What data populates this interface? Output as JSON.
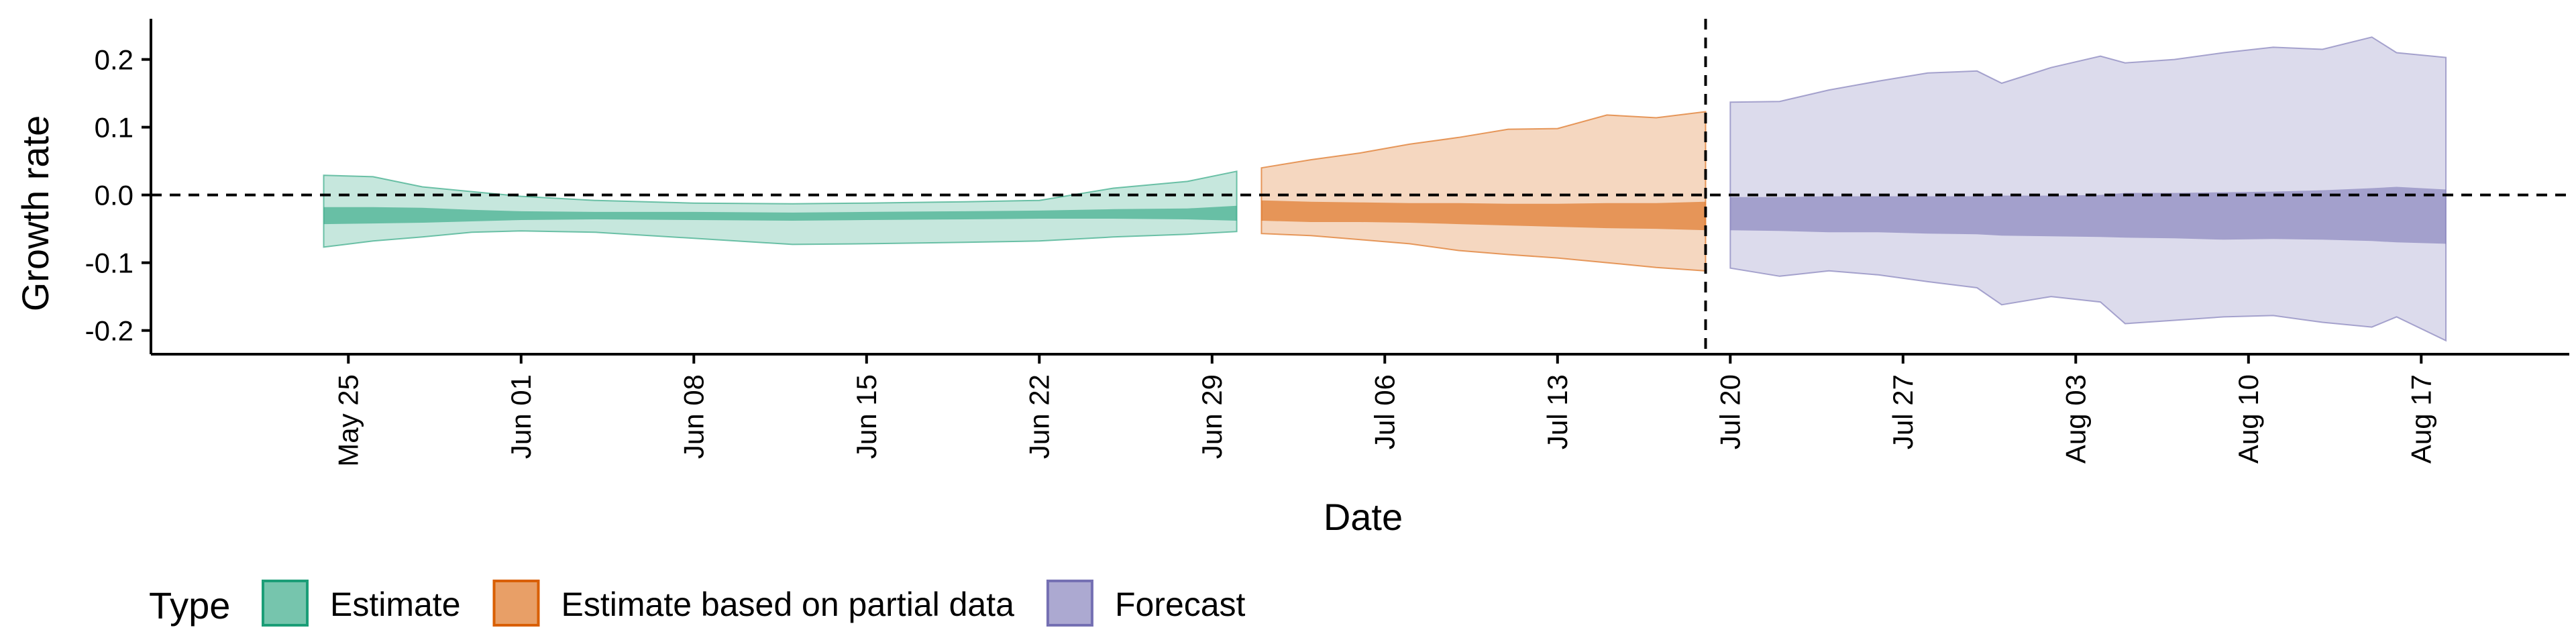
{
  "chart_data": {
    "type": "area",
    "xlabel": "Date",
    "ylabel": "Growth rate",
    "ylim": [
      -0.235,
      0.26
    ],
    "xlim": [
      "2020-05-17",
      "2020-08-23"
    ],
    "y_ticks": [
      {
        "value": 0.2,
        "label": "0.2"
      },
      {
        "value": 0.1,
        "label": "0.1"
      },
      {
        "value": 0.0,
        "label": "0.0"
      },
      {
        "value": -0.1,
        "label": "-0.1"
      },
      {
        "value": -0.2,
        "label": "-0.2"
      }
    ],
    "x_ticks": [
      {
        "date": "2020-05-25",
        "label": "May 25"
      },
      {
        "date": "2020-06-01",
        "label": "Jun 01"
      },
      {
        "date": "2020-06-08",
        "label": "Jun 08"
      },
      {
        "date": "2020-06-15",
        "label": "Jun 15"
      },
      {
        "date": "2020-06-22",
        "label": "Jun 22"
      },
      {
        "date": "2020-06-29",
        "label": "Jun 29"
      },
      {
        "date": "2020-07-06",
        "label": "Jul 06"
      },
      {
        "date": "2020-07-13",
        "label": "Jul 13"
      },
      {
        "date": "2020-07-20",
        "label": "Jul 20"
      },
      {
        "date": "2020-07-27",
        "label": "Jul 27"
      },
      {
        "date": "2020-08-03",
        "label": "Aug 03"
      },
      {
        "date": "2020-08-10",
        "label": "Aug 10"
      },
      {
        "date": "2020-08-17",
        "label": "Aug 17"
      }
    ],
    "reference_lines": {
      "horizontal_y": 0.0,
      "vertical_date": "2020-07-19"
    },
    "legend": {
      "title": "Type",
      "position": "bottom-left",
      "items": [
        {
          "label": "Estimate",
          "color": "#1b9e77"
        },
        {
          "label": "Estimate based on partial data",
          "color": "#d95f02"
        },
        {
          "label": "Forecast",
          "color": "#7570b3"
        }
      ]
    },
    "series": [
      {
        "name": "Estimate",
        "color": "#1b9e77",
        "points": [
          {
            "date": "2020-05-24",
            "outer_lower": -0.077,
            "outer_upper": 0.029,
            "inner_lower": -0.043,
            "inner_upper": -0.018
          },
          {
            "date": "2020-05-26",
            "outer_lower": -0.068,
            "outer_upper": 0.027,
            "inner_lower": -0.042,
            "inner_upper": -0.018
          },
          {
            "date": "2020-05-28",
            "outer_lower": -0.062,
            "outer_upper": 0.012,
            "inner_lower": -0.041,
            "inner_upper": -0.019
          },
          {
            "date": "2020-05-30",
            "outer_lower": -0.055,
            "outer_upper": 0.005,
            "inner_lower": -0.039,
            "inner_upper": -0.022
          },
          {
            "date": "2020-06-01",
            "outer_lower": -0.053,
            "outer_upper": -0.002,
            "inner_lower": -0.037,
            "inner_upper": -0.024
          },
          {
            "date": "2020-06-04",
            "outer_lower": -0.055,
            "outer_upper": -0.008,
            "inner_lower": -0.036,
            "inner_upper": -0.025
          },
          {
            "date": "2020-06-08",
            "outer_lower": -0.064,
            "outer_upper": -0.012,
            "inner_lower": -0.037,
            "inner_upper": -0.025
          },
          {
            "date": "2020-06-12",
            "outer_lower": -0.073,
            "outer_upper": -0.013,
            "inner_lower": -0.038,
            "inner_upper": -0.026
          },
          {
            "date": "2020-06-15",
            "outer_lower": -0.072,
            "outer_upper": -0.012,
            "inner_lower": -0.037,
            "inner_upper": -0.025
          },
          {
            "date": "2020-06-19",
            "outer_lower": -0.07,
            "outer_upper": -0.01,
            "inner_lower": -0.036,
            "inner_upper": -0.024
          },
          {
            "date": "2020-06-22",
            "outer_lower": -0.068,
            "outer_upper": -0.008,
            "inner_lower": -0.035,
            "inner_upper": -0.023
          },
          {
            "date": "2020-06-25",
            "outer_lower": -0.062,
            "outer_upper": 0.01,
            "inner_lower": -0.035,
            "inner_upper": -0.021
          },
          {
            "date": "2020-06-28",
            "outer_lower": -0.058,
            "outer_upper": 0.02,
            "inner_lower": -0.036,
            "inner_upper": -0.02
          },
          {
            "date": "2020-06-30",
            "outer_lower": -0.054,
            "outer_upper": 0.035,
            "inner_lower": -0.038,
            "inner_upper": -0.016
          }
        ]
      },
      {
        "name": "Estimate based on partial data",
        "color": "#d95f02",
        "points": [
          {
            "date": "2020-07-01",
            "outer_lower": -0.057,
            "outer_upper": 0.04,
            "inner_lower": -0.038,
            "inner_upper": -0.008
          },
          {
            "date": "2020-07-03",
            "outer_lower": -0.06,
            "outer_upper": 0.052,
            "inner_lower": -0.04,
            "inner_upper": -0.01
          },
          {
            "date": "2020-07-05",
            "outer_lower": -0.066,
            "outer_upper": 0.062,
            "inner_lower": -0.04,
            "inner_upper": -0.011
          },
          {
            "date": "2020-07-07",
            "outer_lower": -0.072,
            "outer_upper": 0.075,
            "inner_lower": -0.041,
            "inner_upper": -0.012
          },
          {
            "date": "2020-07-09",
            "outer_lower": -0.082,
            "outer_upper": 0.085,
            "inner_lower": -0.043,
            "inner_upper": -0.012
          },
          {
            "date": "2020-07-11",
            "outer_lower": -0.088,
            "outer_upper": 0.097,
            "inner_lower": -0.045,
            "inner_upper": -0.013
          },
          {
            "date": "2020-07-13",
            "outer_lower": -0.093,
            "outer_upper": 0.098,
            "inner_lower": -0.047,
            "inner_upper": -0.013
          },
          {
            "date": "2020-07-15",
            "outer_lower": -0.1,
            "outer_upper": 0.118,
            "inner_lower": -0.049,
            "inner_upper": -0.012
          },
          {
            "date": "2020-07-17",
            "outer_lower": -0.107,
            "outer_upper": 0.114,
            "inner_lower": -0.05,
            "inner_upper": -0.012
          },
          {
            "date": "2020-07-19",
            "outer_lower": -0.112,
            "outer_upper": 0.123,
            "inner_lower": -0.052,
            "inner_upper": -0.01
          }
        ]
      },
      {
        "name": "Forecast",
        "color": "#7570b3",
        "points": [
          {
            "date": "2020-07-20",
            "outer_lower": -0.108,
            "outer_upper": 0.137,
            "inner_lower": -0.052,
            "inner_upper": -0.003
          },
          {
            "date": "2020-07-22",
            "outer_lower": -0.12,
            "outer_upper": 0.138,
            "inner_lower": -0.053,
            "inner_upper": -0.003
          },
          {
            "date": "2020-07-24",
            "outer_lower": -0.112,
            "outer_upper": 0.155,
            "inner_lower": -0.055,
            "inner_upper": -0.002
          },
          {
            "date": "2020-07-26",
            "outer_lower": -0.118,
            "outer_upper": 0.168,
            "inner_lower": -0.055,
            "inner_upper": -0.002
          },
          {
            "date": "2020-07-28",
            "outer_lower": -0.128,
            "outer_upper": 0.18,
            "inner_lower": -0.057,
            "inner_upper": -0.002
          },
          {
            "date": "2020-07-30",
            "outer_lower": -0.137,
            "outer_upper": 0.183,
            "inner_lower": -0.058,
            "inner_upper": -0.002
          },
          {
            "date": "2020-07-31",
            "outer_lower": -0.162,
            "outer_upper": 0.165,
            "inner_lower": -0.06,
            "inner_upper": -0.001
          },
          {
            "date": "2020-08-02",
            "outer_lower": -0.15,
            "outer_upper": 0.188,
            "inner_lower": -0.061,
            "inner_upper": -0.001
          },
          {
            "date": "2020-08-04",
            "outer_lower": -0.158,
            "outer_upper": 0.205,
            "inner_lower": -0.062,
            "inner_upper": 0.0
          },
          {
            "date": "2020-08-05",
            "outer_lower": -0.19,
            "outer_upper": 0.195,
            "inner_lower": -0.063,
            "inner_upper": 0.003
          },
          {
            "date": "2020-08-07",
            "outer_lower": -0.185,
            "outer_upper": 0.2,
            "inner_lower": -0.064,
            "inner_upper": 0.003
          },
          {
            "date": "2020-08-09",
            "outer_lower": -0.18,
            "outer_upper": 0.21,
            "inner_lower": -0.066,
            "inner_upper": 0.004
          },
          {
            "date": "2020-08-11",
            "outer_lower": -0.178,
            "outer_upper": 0.218,
            "inner_lower": -0.065,
            "inner_upper": 0.005
          },
          {
            "date": "2020-08-13",
            "outer_lower": -0.188,
            "outer_upper": 0.215,
            "inner_lower": -0.066,
            "inner_upper": 0.007
          },
          {
            "date": "2020-08-15",
            "outer_lower": -0.195,
            "outer_upper": 0.233,
            "inner_lower": -0.068,
            "inner_upper": 0.01
          },
          {
            "date": "2020-08-16",
            "outer_lower": -0.18,
            "outer_upper": 0.21,
            "inner_lower": -0.07,
            "inner_upper": 0.012
          },
          {
            "date": "2020-08-18",
            "outer_lower": -0.215,
            "outer_upper": 0.203,
            "inner_lower": -0.072,
            "inner_upper": 0.008
          }
        ]
      }
    ]
  }
}
